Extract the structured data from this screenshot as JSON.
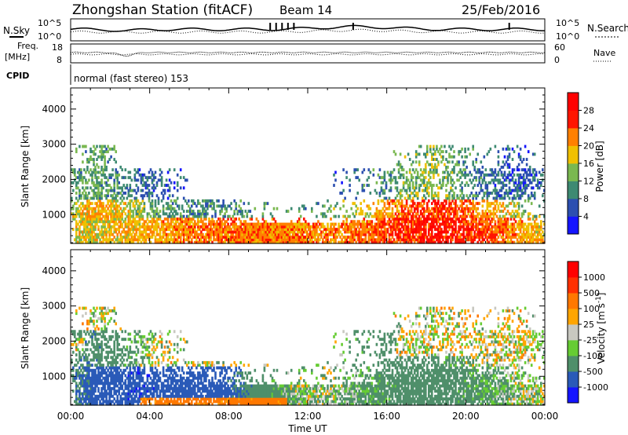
{
  "header": {
    "station": "Zhongshan Station (fitACF)",
    "beam": "Beam 14",
    "date": "25/Feb/2016"
  },
  "top_strip": {
    "nsky_label": "N.Sky",
    "nsearch_label": "N.Search",
    "left_ticks": [
      "10^5",
      "10^0"
    ],
    "right_ticks": [
      "10^5",
      "10^0"
    ],
    "freq_label_1": "Freq.",
    "freq_label_2": "[MHz]",
    "freq_ticks": [
      "18",
      "8"
    ],
    "nave_label": "Nave",
    "nave_ticks": [
      "60",
      "0"
    ],
    "cpid_label": "CPID",
    "cpid_text": "normal (fast stereo) 153"
  },
  "chart_data": [
    {
      "type": "heatmap",
      "parameter": "power",
      "ylabel": "Slant Range [km]",
      "ylim": [
        180,
        4600
      ],
      "yticks": [
        1000,
        2000,
        3000,
        4000
      ],
      "xlim": [
        0,
        24
      ],
      "colorbar": {
        "label": "Power [dB]",
        "tick_labels": [
          "4",
          "8",
          "12",
          "16",
          "20",
          "24",
          "28"
        ],
        "colors": [
          "#1414ff",
          "#2c4fb0",
          "#3e8a72",
          "#7ab850",
          "#f0c000",
          "#ff8000",
          "#ff1500",
          "#ff0000"
        ]
      }
    },
    {
      "type": "heatmap",
      "parameter": "velocity",
      "ylabel": "Slant Range [km]",
      "ylim": [
        180,
        4600
      ],
      "yticks": [
        1000,
        2000,
        3000,
        4000
      ],
      "xlim": [
        0,
        24
      ],
      "xlabel": "Time UT",
      "xtick_labels": [
        "00:00",
        "04:00",
        "08:00",
        "12:00",
        "16:00",
        "20:00",
        "00:00"
      ],
      "colorbar": {
        "label": "Velocity [m s",
        "label_sup": "-1",
        "label_end": "]",
        "tick_labels": [
          "1000",
          "500",
          "100",
          "25",
          "-25",
          "-100",
          "-500",
          "-1000"
        ],
        "colors": [
          "#1414ff",
          "#2a5ab8",
          "#4f8f6a",
          "#66cc33",
          "#c8c8c0",
          "#ffa500",
          "#ff7800",
          "#ff3000",
          "#ff0000"
        ]
      }
    }
  ]
}
